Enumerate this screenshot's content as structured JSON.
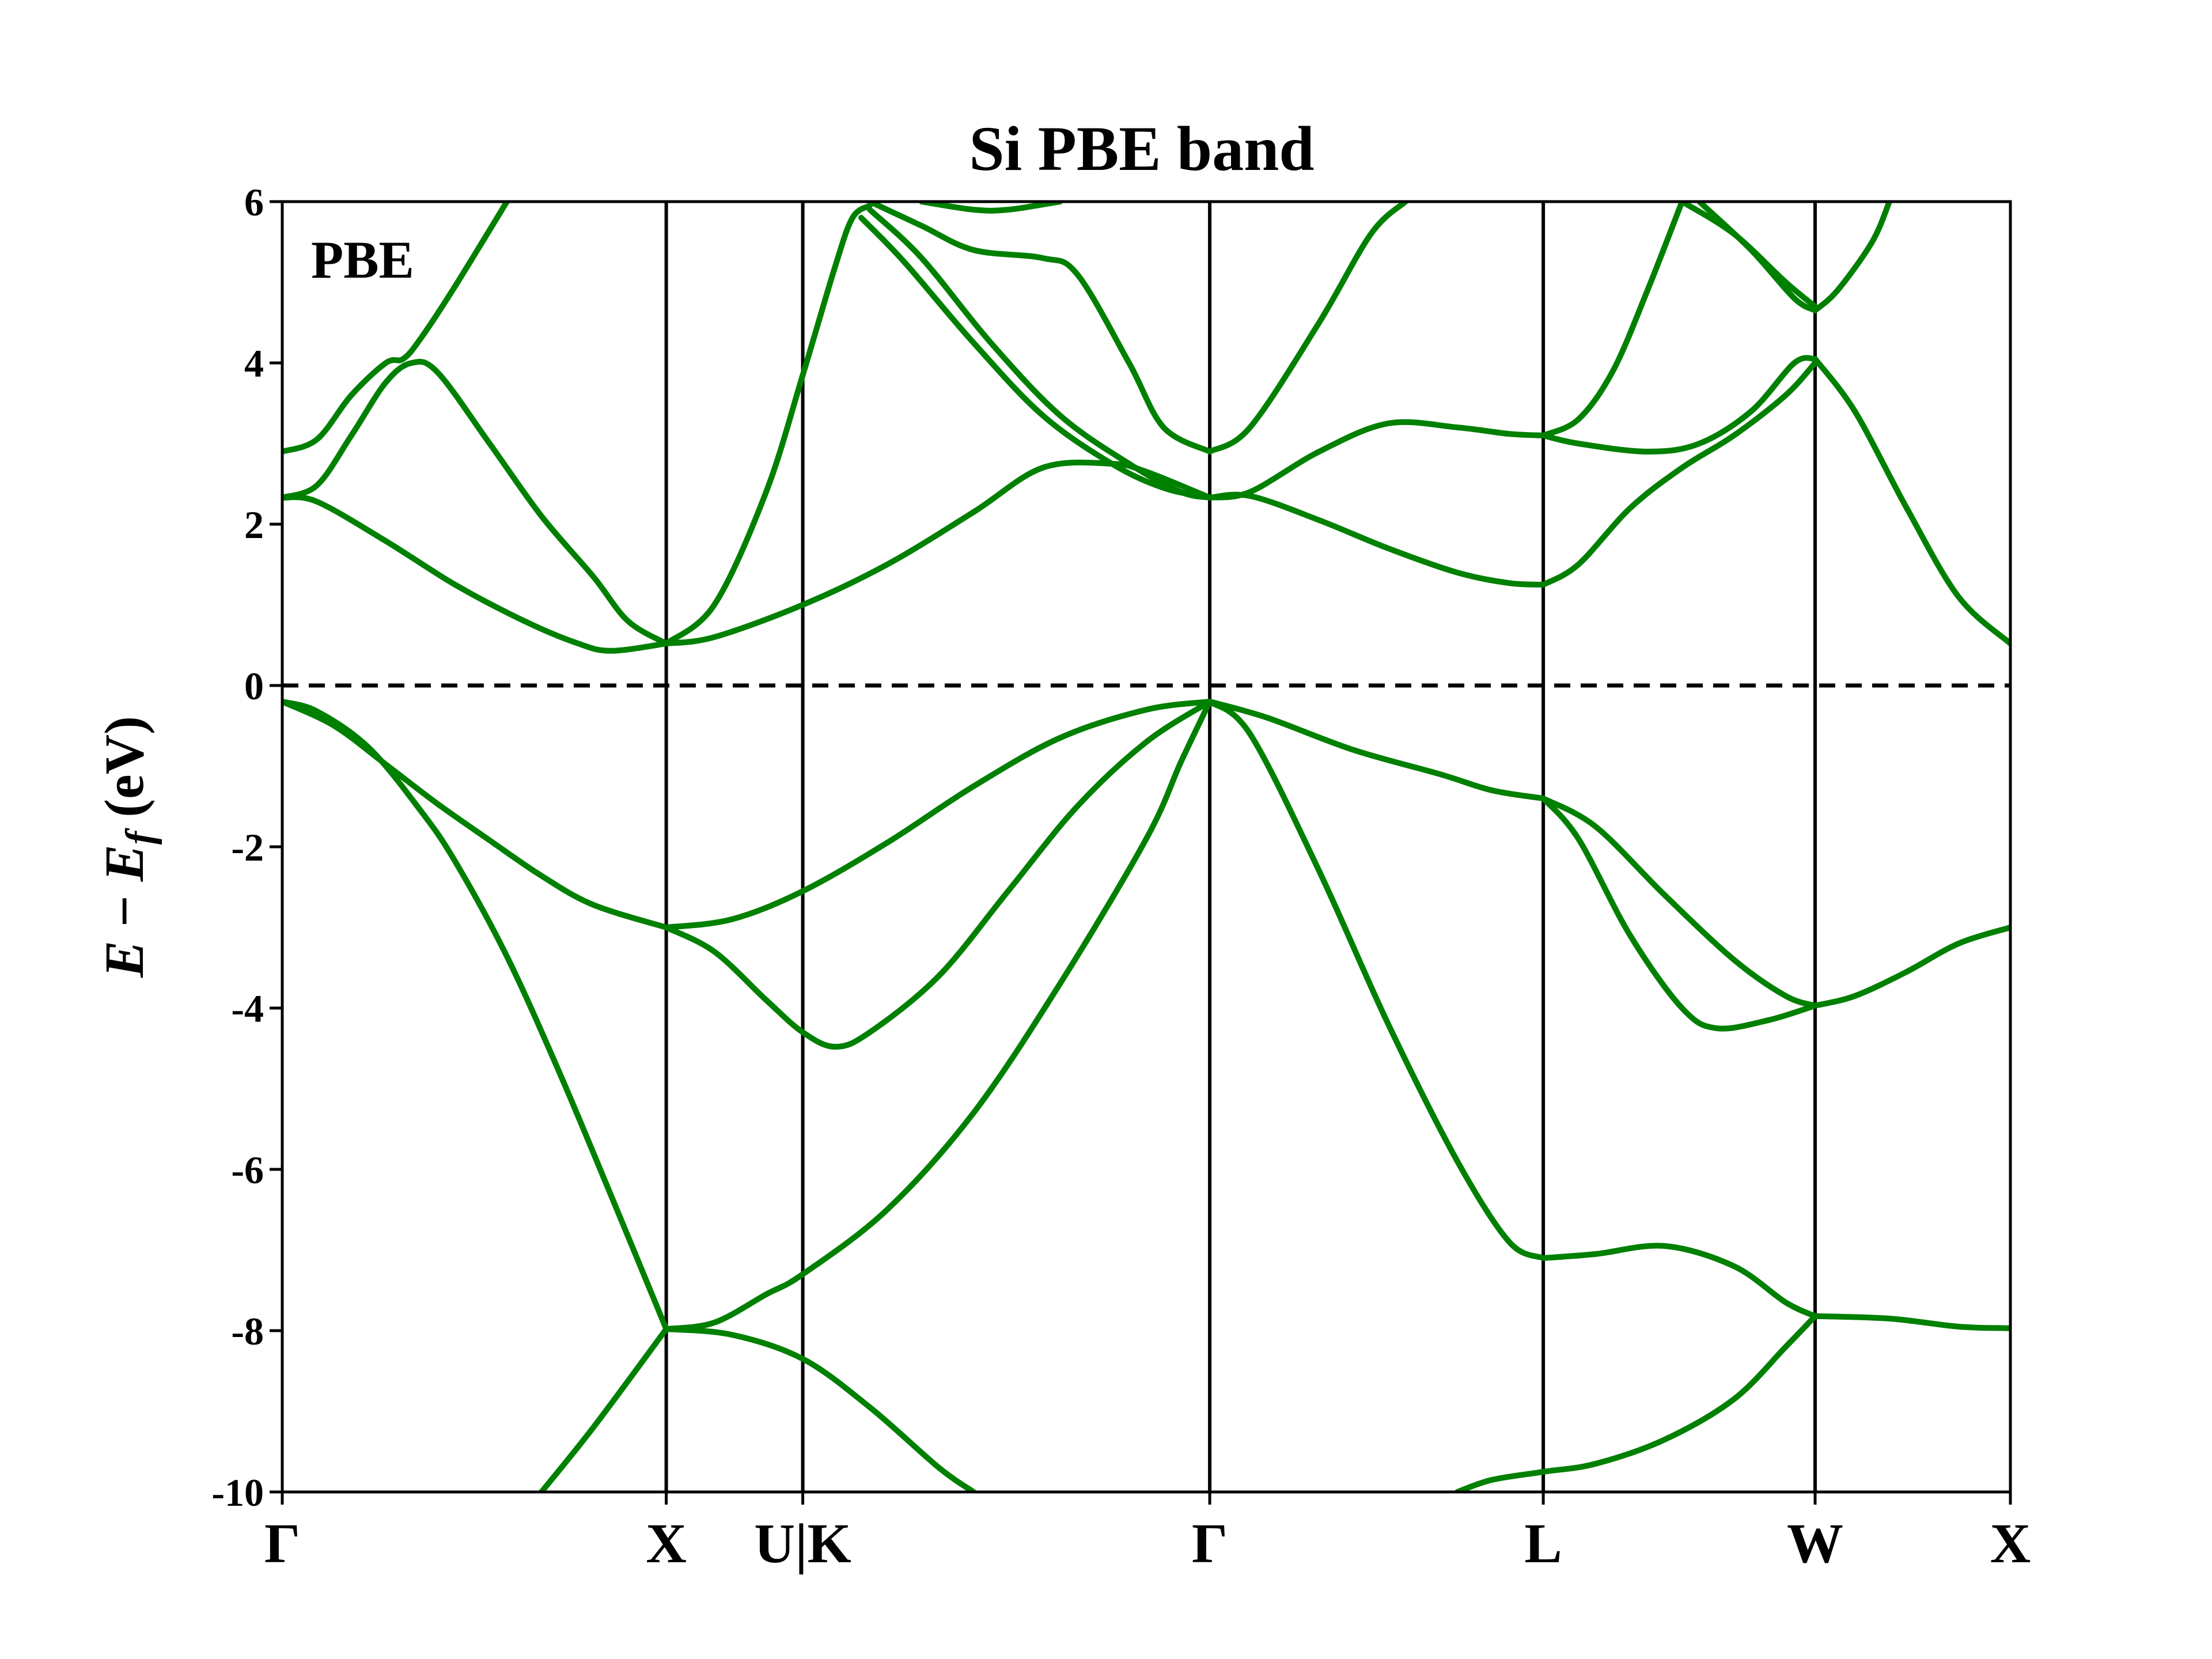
{
  "chart_data": {
    "type": "line",
    "title": "Si PBE band",
    "ylabel_parts": {
      "italic_1": "E",
      "minus": " − ",
      "italic_2": "E",
      "subscript": "f",
      "unit": " (eV)"
    },
    "annotation": "PBE",
    "xlim": [
      0,
      1
    ],
    "ylim": [
      -10,
      6
    ],
    "y_ticks": [
      6,
      4,
      2,
      0,
      -2,
      -4,
      -6,
      -8,
      -10
    ],
    "fermi_level": 0,
    "high_symmetry_points": [
      {
        "label": "Γ",
        "x": 0.0
      },
      {
        "label": "X",
        "x": 0.2222
      },
      {
        "label": "U|K",
        "x": 0.3012
      },
      {
        "label": "Γ",
        "x": 0.5367
      },
      {
        "label": "L",
        "x": 0.7297
      },
      {
        "label": "W",
        "x": 0.887
      },
      {
        "label": "X",
        "x": 1.0
      }
    ],
    "series_color": "#008000",
    "vline_color": "#000000",
    "series": [
      {
        "values": [
          [
            0,
            -0.2
          ],
          [
            0.02,
            -0.32
          ],
          [
            0.05,
            -0.77
          ],
          [
            0.08,
            -1.55
          ],
          [
            0.1,
            -2.18
          ],
          [
            0.13,
            -3.36
          ],
          [
            0.16,
            -4.78
          ],
          [
            0.19,
            -6.31
          ],
          [
            0.2222,
            -7.98
          ]
        ]
      },
      {
        "values": [
          [
            0,
            -0.2
          ],
          [
            0.03,
            -0.5
          ],
          [
            0.06,
            -0.98
          ],
          [
            0.09,
            -1.47
          ],
          [
            0.12,
            -1.92
          ],
          [
            0.15,
            -2.36
          ],
          [
            0.18,
            -2.72
          ],
          [
            0.2222,
            -3.0
          ]
        ]
      },
      {
        "values": [
          [
            0,
            2.33
          ],
          [
            0.02,
            2.28
          ],
          [
            0.06,
            1.79
          ],
          [
            0.1,
            1.25
          ],
          [
            0.14,
            0.8
          ],
          [
            0.17,
            0.53
          ],
          [
            0.19,
            0.43
          ],
          [
            0.2222,
            0.52
          ]
        ]
      },
      {
        "values": [
          [
            0,
            2.33
          ],
          [
            0.02,
            2.48
          ],
          [
            0.04,
            3.1
          ],
          [
            0.06,
            3.76
          ],
          [
            0.075,
            4.0
          ],
          [
            0.09,
            3.88
          ],
          [
            0.12,
            3.0
          ],
          [
            0.15,
            2.1
          ],
          [
            0.18,
            1.35
          ],
          [
            0.2,
            0.8
          ],
          [
            0.2222,
            0.52
          ]
        ]
      },
      {
        "values": [
          [
            0,
            2.9
          ],
          [
            0.02,
            3.05
          ],
          [
            0.04,
            3.6
          ],
          [
            0.06,
            4.0
          ],
          [
            0.07,
            4.05
          ],
          [
            0.08,
            4.3
          ],
          [
            0.1,
            4.95
          ],
          [
            0.13,
            6.0
          ]
        ]
      },
      {
        "values": [
          [
            0.15,
            -10.0
          ],
          [
            0.18,
            -9.2
          ],
          [
            0.2222,
            -7.98
          ]
        ]
      },
      {
        "values": [
          [
            0.2222,
            -7.98
          ],
          [
            0.25,
            -7.9
          ],
          [
            0.28,
            -7.55
          ],
          [
            0.3012,
            -7.3
          ],
          [
            0.35,
            -6.5
          ],
          [
            0.4,
            -5.3
          ],
          [
            0.45,
            -3.7
          ],
          [
            0.5,
            -1.9
          ],
          [
            0.52,
            -0.95
          ],
          [
            0.5367,
            -0.2
          ]
        ]
      },
      {
        "values": [
          [
            0.2222,
            -7.98
          ],
          [
            0.26,
            -8.05
          ],
          [
            0.3012,
            -8.35
          ],
          [
            0.34,
            -8.95
          ],
          [
            0.38,
            -9.7
          ],
          [
            0.4,
            -10.0
          ]
        ]
      },
      {
        "values": [
          [
            0.2222,
            -3.0
          ],
          [
            0.25,
            -3.3
          ],
          [
            0.28,
            -3.9
          ],
          [
            0.3012,
            -4.3
          ],
          [
            0.32,
            -4.48
          ],
          [
            0.34,
            -4.3
          ],
          [
            0.38,
            -3.6
          ],
          [
            0.42,
            -2.55
          ],
          [
            0.46,
            -1.5
          ],
          [
            0.5,
            -0.7
          ],
          [
            0.5367,
            -0.2
          ]
        ]
      },
      {
        "values": [
          [
            0.2222,
            -3.0
          ],
          [
            0.26,
            -2.9
          ],
          [
            0.3012,
            -2.55
          ],
          [
            0.35,
            -1.95
          ],
          [
            0.4,
            -1.25
          ],
          [
            0.45,
            -0.65
          ],
          [
            0.5,
            -0.3
          ],
          [
            0.5367,
            -0.2
          ]
        ]
      },
      {
        "values": [
          [
            0.2222,
            0.52
          ],
          [
            0.25,
            0.6
          ],
          [
            0.3012,
            1.0
          ],
          [
            0.35,
            1.5
          ],
          [
            0.4,
            2.15
          ],
          [
            0.44,
            2.7
          ],
          [
            0.48,
            2.75
          ],
          [
            0.5,
            2.65
          ],
          [
            0.5367,
            2.33
          ]
        ]
      },
      {
        "values": [
          [
            0.2222,
            0.52
          ],
          [
            0.25,
            1.0
          ],
          [
            0.28,
            2.4
          ],
          [
            0.3012,
            3.85
          ],
          [
            0.32,
            5.2
          ],
          [
            0.33,
            5.8
          ],
          [
            0.34,
            5.95
          ]
        ]
      },
      {
        "values": [
          [
            0.335,
            5.8
          ],
          [
            0.36,
            5.25
          ],
          [
            0.4,
            4.25
          ],
          [
            0.44,
            3.35
          ],
          [
            0.48,
            2.75
          ],
          [
            0.51,
            2.45
          ],
          [
            0.5367,
            2.33
          ]
        ]
      },
      {
        "values": [
          [
            0.34,
            5.9
          ],
          [
            0.37,
            5.3
          ],
          [
            0.41,
            4.25
          ],
          [
            0.45,
            3.35
          ],
          [
            0.49,
            2.75
          ],
          [
            0.52,
            2.4
          ],
          [
            0.5367,
            2.33
          ]
        ]
      },
      {
        "values": [
          [
            0.34,
            6.0
          ],
          [
            0.37,
            5.7
          ],
          [
            0.4,
            5.4
          ],
          [
            0.44,
            5.3
          ],
          [
            0.46,
            5.1
          ],
          [
            0.49,
            4.0
          ],
          [
            0.51,
            3.2
          ],
          [
            0.5367,
            2.9
          ]
        ]
      },
      {
        "values": [
          [
            0.37,
            6.0
          ],
          [
            0.4,
            5.9
          ],
          [
            0.42,
            5.9
          ],
          [
            0.45,
            6.0
          ]
        ]
      },
      {
        "values": [
          [
            0.5367,
            -0.2
          ],
          [
            0.56,
            -0.6
          ],
          [
            0.6,
            -2.3
          ],
          [
            0.64,
            -4.2
          ],
          [
            0.68,
            -5.9
          ],
          [
            0.71,
            -6.9
          ],
          [
            0.7297,
            -7.1
          ]
        ]
      },
      {
        "values": [
          [
            0.5367,
            -0.2
          ],
          [
            0.57,
            -0.4
          ],
          [
            0.62,
            -0.8
          ],
          [
            0.67,
            -1.1
          ],
          [
            0.7,
            -1.3
          ],
          [
            0.7297,
            -1.4
          ]
        ]
      },
      {
        "values": [
          [
            0.5367,
            2.33
          ],
          [
            0.56,
            2.35
          ],
          [
            0.6,
            2.05
          ],
          [
            0.64,
            1.7
          ],
          [
            0.68,
            1.4
          ],
          [
            0.71,
            1.27
          ],
          [
            0.7297,
            1.25
          ]
        ]
      },
      {
        "values": [
          [
            0.5367,
            2.33
          ],
          [
            0.56,
            2.4
          ],
          [
            0.6,
            2.9
          ],
          [
            0.64,
            3.25
          ],
          [
            0.68,
            3.2
          ],
          [
            0.71,
            3.12
          ],
          [
            0.7297,
            3.1
          ]
        ]
      },
      {
        "values": [
          [
            0.5367,
            2.9
          ],
          [
            0.56,
            3.2
          ],
          [
            0.6,
            4.5
          ],
          [
            0.63,
            5.6
          ],
          [
            0.65,
            6.0
          ]
        ]
      },
      {
        "values": [
          [
            0.7297,
            -7.1
          ],
          [
            0.76,
            -7.05
          ],
          [
            0.8,
            -6.95
          ],
          [
            0.84,
            -7.2
          ],
          [
            0.87,
            -7.65
          ],
          [
            0.887,
            -7.82
          ]
        ]
      },
      {
        "values": [
          [
            0.7297,
            -1.4
          ],
          [
            0.76,
            -1.75
          ],
          [
            0.8,
            -2.6
          ],
          [
            0.84,
            -3.4
          ],
          [
            0.87,
            -3.85
          ],
          [
            0.887,
            -3.97
          ]
        ]
      },
      {
        "values": [
          [
            0.7297,
            -1.4
          ],
          [
            0.75,
            -1.9
          ],
          [
            0.78,
            -3.1
          ],
          [
            0.81,
            -4.0
          ],
          [
            0.83,
            -4.25
          ],
          [
            0.86,
            -4.15
          ],
          [
            0.887,
            -3.97
          ]
        ]
      },
      {
        "values": [
          [
            0.7297,
            1.25
          ],
          [
            0.75,
            1.5
          ],
          [
            0.78,
            2.2
          ],
          [
            0.81,
            2.7
          ],
          [
            0.84,
            3.1
          ],
          [
            0.87,
            3.6
          ],
          [
            0.887,
            4.0
          ]
        ]
      },
      {
        "values": [
          [
            0.7297,
            3.1
          ],
          [
            0.75,
            3.0
          ],
          [
            0.79,
            2.9
          ],
          [
            0.82,
            3.0
          ],
          [
            0.85,
            3.4
          ],
          [
            0.875,
            4.0
          ],
          [
            0.887,
            4.05
          ]
        ]
      },
      {
        "values": [
          [
            0.7297,
            3.1
          ],
          [
            0.75,
            3.3
          ],
          [
            0.77,
            3.9
          ],
          [
            0.79,
            4.9
          ],
          [
            0.81,
            6.0
          ]
        ]
      },
      {
        "values": [
          [
            0.81,
            6.0
          ],
          [
            0.84,
            5.6
          ],
          [
            0.87,
            5.0
          ],
          [
            0.887,
            4.7
          ]
        ]
      },
      {
        "values": [
          [
            0.82,
            6.0
          ],
          [
            0.85,
            5.4
          ],
          [
            0.875,
            4.8
          ],
          [
            0.887,
            4.65
          ]
        ]
      },
      {
        "values": [
          [
            0.887,
            4.65
          ],
          [
            0.9,
            4.9
          ],
          [
            0.92,
            5.5
          ],
          [
            0.93,
            6.0
          ]
        ]
      },
      {
        "values": [
          [
            0.68,
            -10.0
          ],
          [
            0.7,
            -9.85
          ],
          [
            0.7297,
            -9.75
          ],
          [
            0.76,
            -9.65
          ],
          [
            0.8,
            -9.35
          ],
          [
            0.84,
            -8.85
          ],
          [
            0.87,
            -8.2
          ],
          [
            0.887,
            -7.82
          ]
        ]
      },
      {
        "values": [
          [
            0.887,
            -7.82
          ],
          [
            0.93,
            -7.85
          ],
          [
            0.97,
            -7.95
          ],
          [
            1.0,
            -7.97
          ]
        ]
      },
      {
        "values": [
          [
            0.887,
            -3.97
          ],
          [
            0.91,
            -3.85
          ],
          [
            0.94,
            -3.55
          ],
          [
            0.97,
            -3.2
          ],
          [
            1.0,
            -3.0
          ]
        ]
      },
      {
        "values": [
          [
            0.887,
            4.05
          ],
          [
            0.91,
            3.4
          ],
          [
            0.94,
            2.2
          ],
          [
            0.97,
            1.1
          ],
          [
            1.0,
            0.52
          ]
        ]
      }
    ]
  }
}
